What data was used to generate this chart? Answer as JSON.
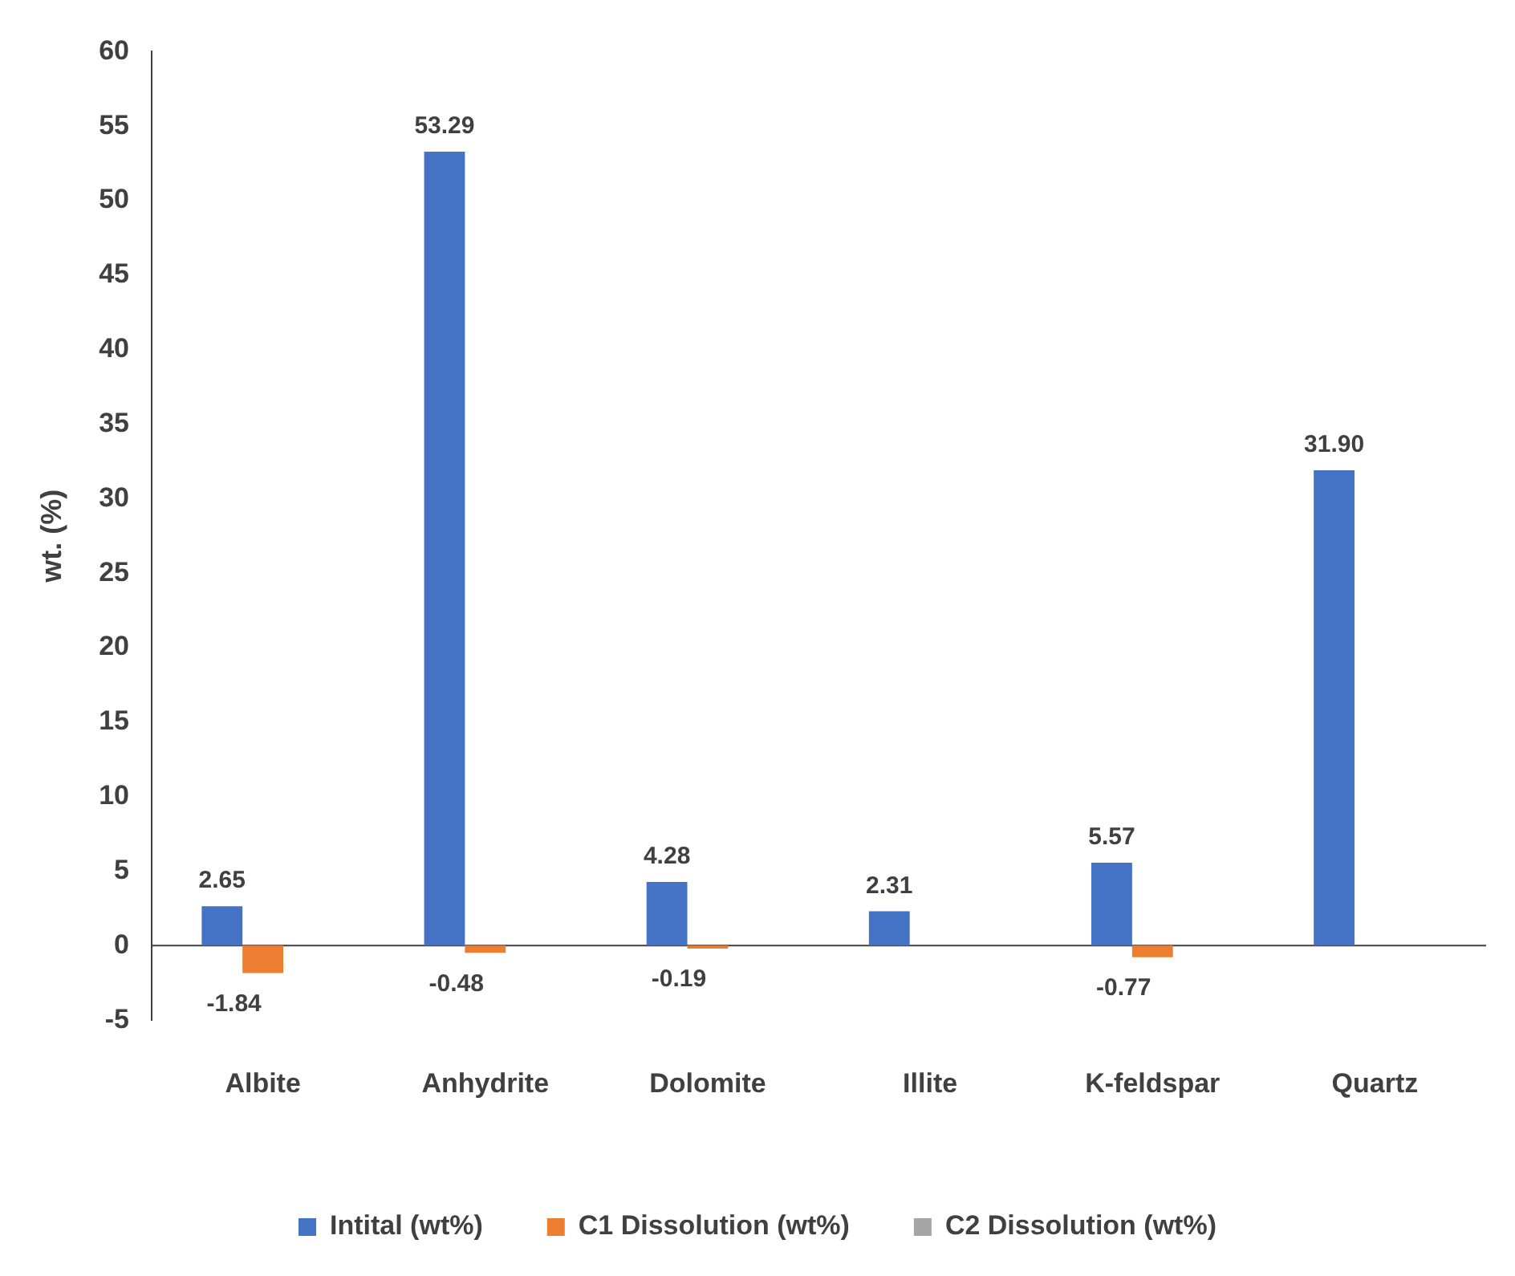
{
  "chart_data": {
    "type": "bar",
    "ylabel": "wt. (%)",
    "categories": [
      "Albite",
      "Anhydrite",
      "Dolomite",
      "Illite",
      "K-feldspar",
      "Quartz"
    ],
    "series": [
      {
        "name": "Intital (wt%)",
        "color": "#4472c4",
        "values": [
          2.65,
          53.29,
          4.28,
          2.31,
          5.57,
          31.9
        ],
        "value_labels": [
          "2.65",
          "53.29",
          "4.28",
          "2.31",
          "5.57",
          "31.90"
        ]
      },
      {
        "name": "C1 Dissolution (wt%)",
        "color": "#ed7d31",
        "values": [
          -1.84,
          -0.48,
          -0.19,
          null,
          -0.77,
          null
        ],
        "value_labels": [
          "-1.84",
          "-0.48",
          "-0.19",
          null,
          "-0.77",
          null
        ]
      },
      {
        "name": "C2 Dissolution (wt%)",
        "color": "#a5a5a5",
        "values": [
          null,
          null,
          null,
          null,
          null,
          null
        ]
      }
    ],
    "ylim": [
      -5,
      60
    ],
    "yticks": [
      -5,
      0,
      5,
      10,
      15,
      20,
      25,
      30,
      35,
      40,
      45,
      50,
      55,
      60
    ],
    "ref_lines": [
      {
        "axis": "y",
        "value": 0,
        "color": "#404040"
      }
    ],
    "legend": "bottom"
  }
}
